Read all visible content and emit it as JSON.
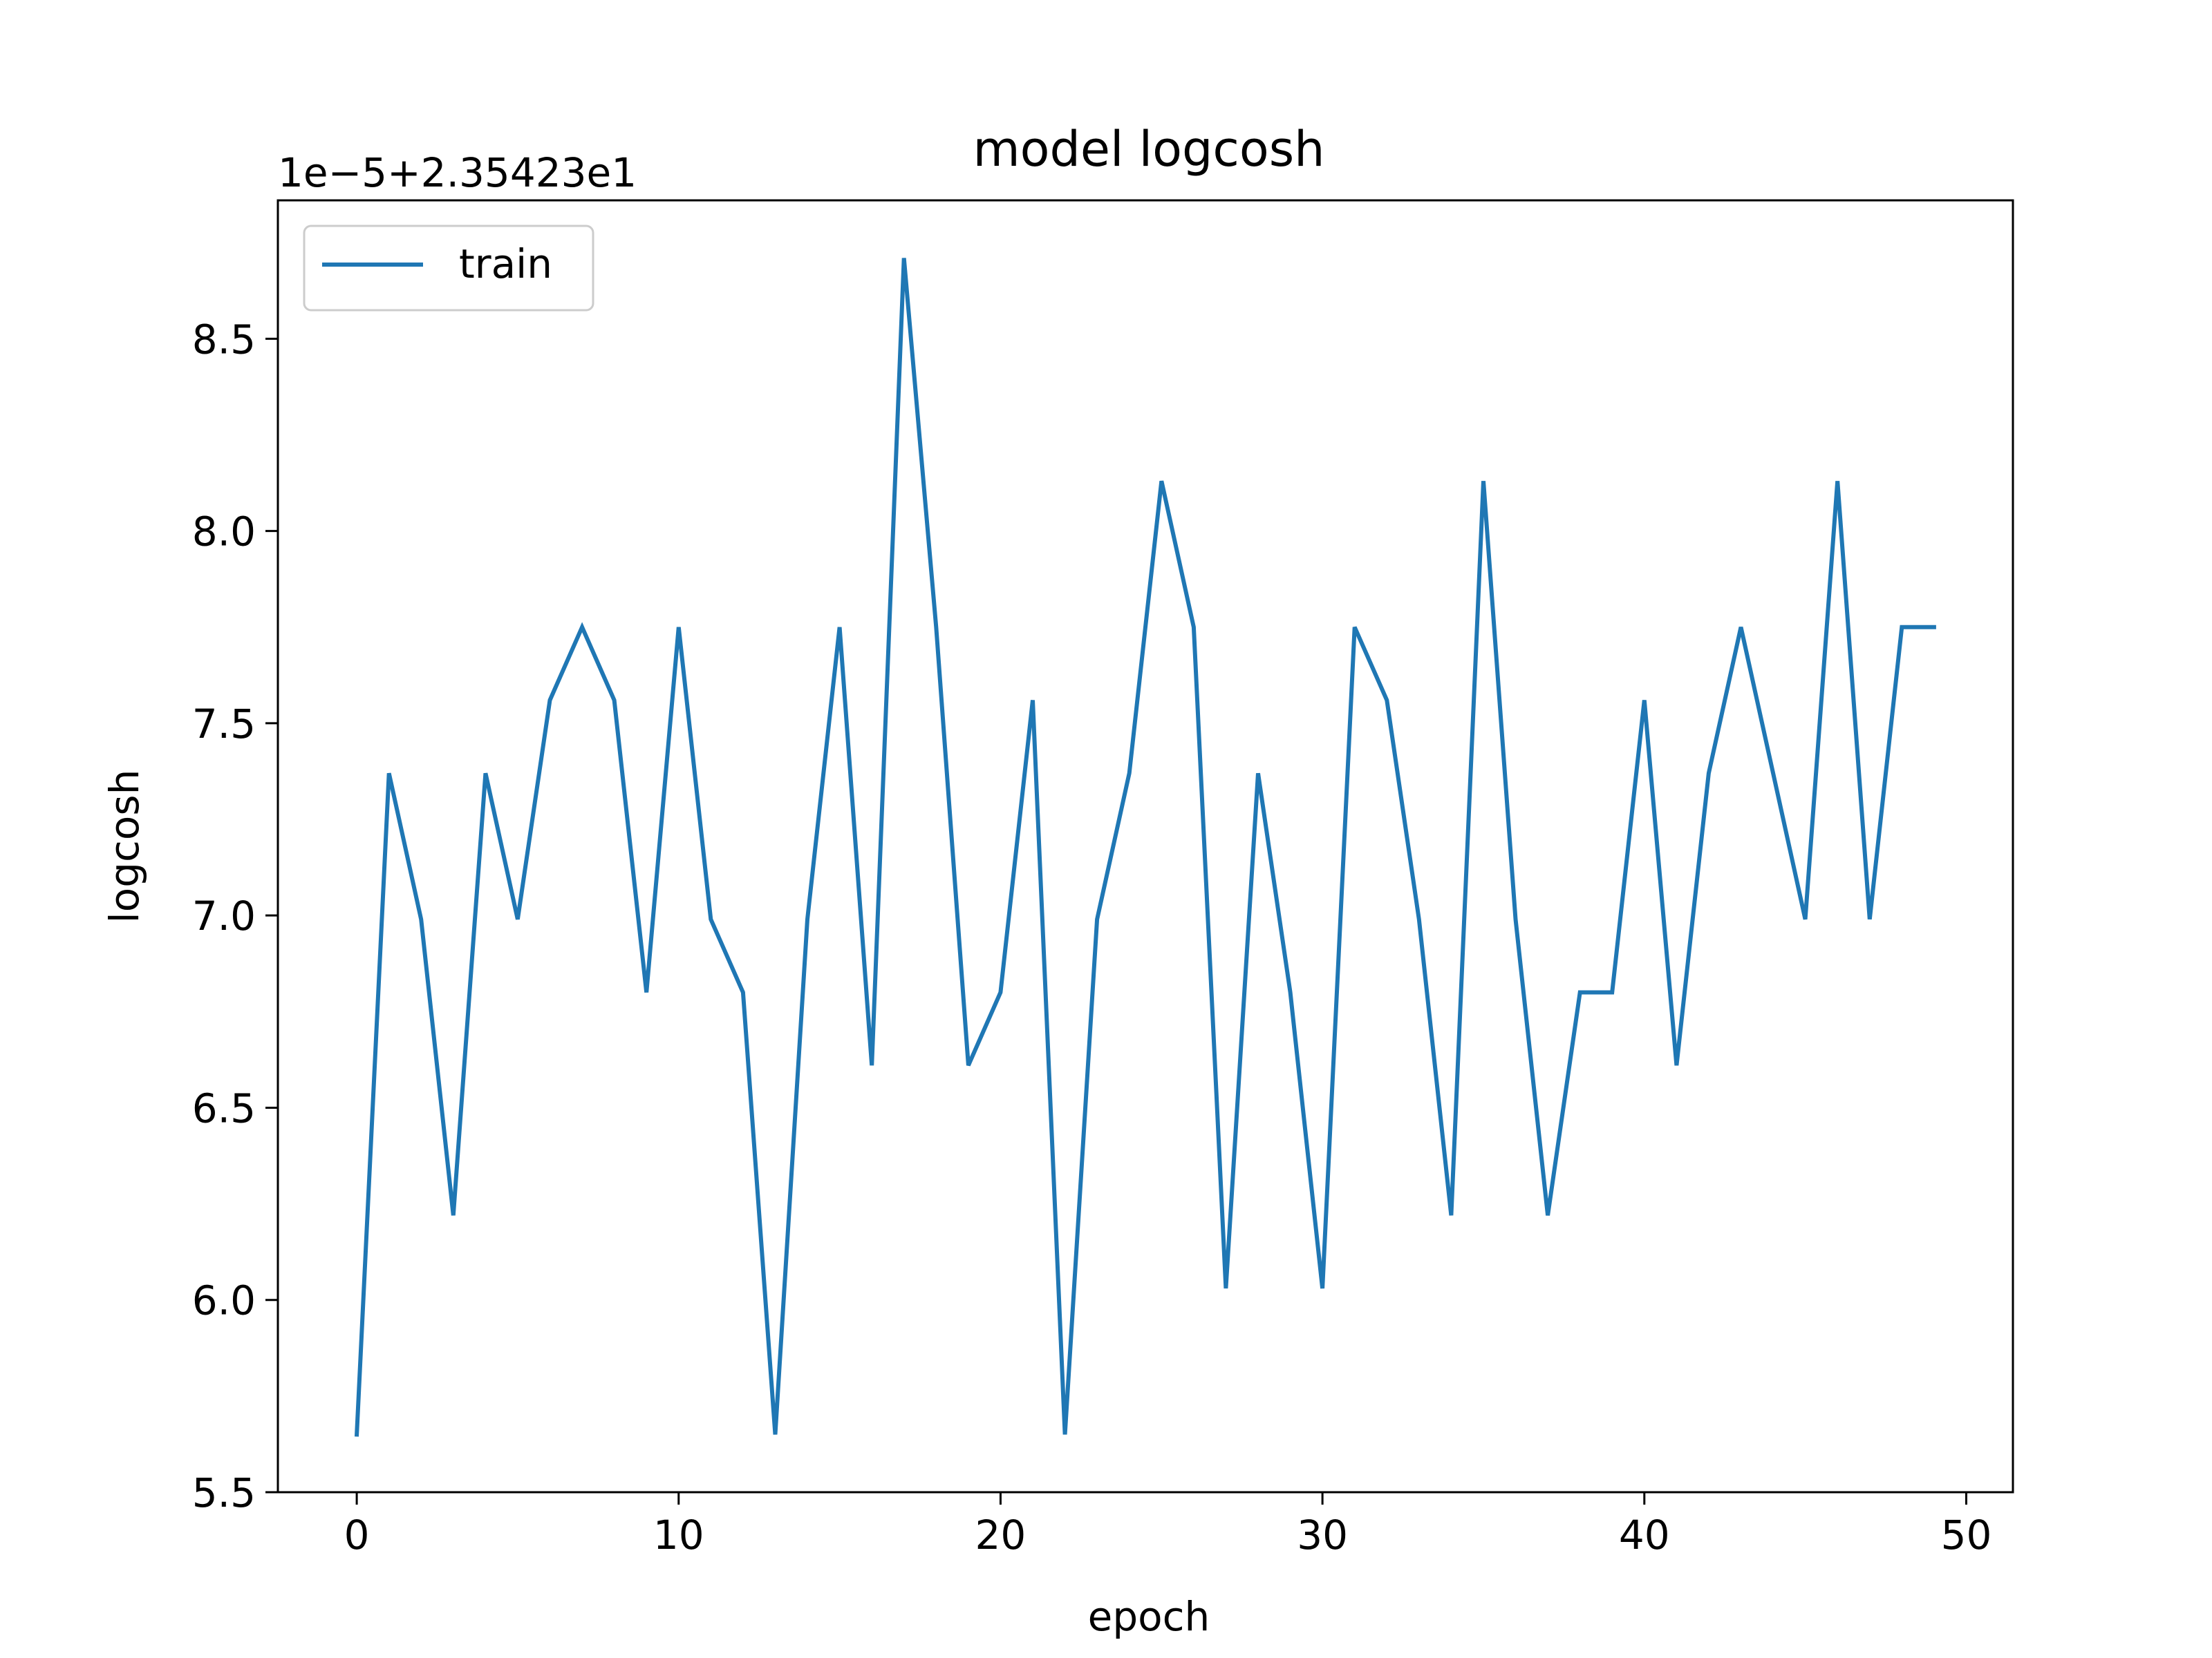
{
  "chart_data": {
    "type": "line",
    "title": "model logcosh",
    "xlabel": "epoch",
    "ylabel": "logcosh",
    "offset_text": "1e−5+2.35423e1",
    "xlim": [
      -2.45,
      51.45
    ],
    "ylim": [
      5.5,
      8.86
    ],
    "xticks": [
      0,
      10,
      20,
      30,
      40,
      50
    ],
    "xtick_labels": [
      "0",
      "10",
      "20",
      "30",
      "40",
      "50"
    ],
    "yticks": [
      5.5,
      6.0,
      6.5,
      7.0,
      7.5,
      8.0,
      8.5
    ],
    "ytick_labels": [
      "5.5",
      "6.0",
      "6.5",
      "7.0",
      "7.5",
      "8.0",
      "8.5"
    ],
    "grid": false,
    "legend": "top-left",
    "series": [
      {
        "name": "train",
        "color": "#1f77b4",
        "x": [
          0,
          1,
          2,
          3,
          4,
          5,
          6,
          7,
          8,
          9,
          10,
          11,
          12,
          13,
          14,
          15,
          16,
          17,
          18,
          19,
          20,
          21,
          22,
          23,
          24,
          25,
          26,
          27,
          28,
          29,
          30,
          31,
          32,
          33,
          34,
          35,
          36,
          37,
          38,
          39,
          40,
          41,
          42,
          43,
          44,
          45,
          46,
          47,
          48,
          49
        ],
        "values": [
          5.65,
          7.37,
          6.99,
          6.22,
          7.37,
          6.99,
          7.56,
          7.75,
          7.56,
          6.8,
          7.75,
          6.99,
          6.8,
          5.65,
          6.99,
          7.75,
          6.61,
          8.71,
          7.75,
          6.61,
          6.8,
          7.56,
          5.65,
          6.99,
          7.37,
          8.13,
          7.75,
          6.03,
          7.37,
          6.8,
          6.03,
          7.75,
          7.56,
          6.99,
          6.22,
          8.13,
          6.99,
          6.22,
          6.8,
          6.8,
          7.56,
          6.61,
          7.37,
          7.75,
          7.37,
          6.99,
          8.13,
          6.99,
          7.75,
          7.75
        ]
      }
    ]
  }
}
